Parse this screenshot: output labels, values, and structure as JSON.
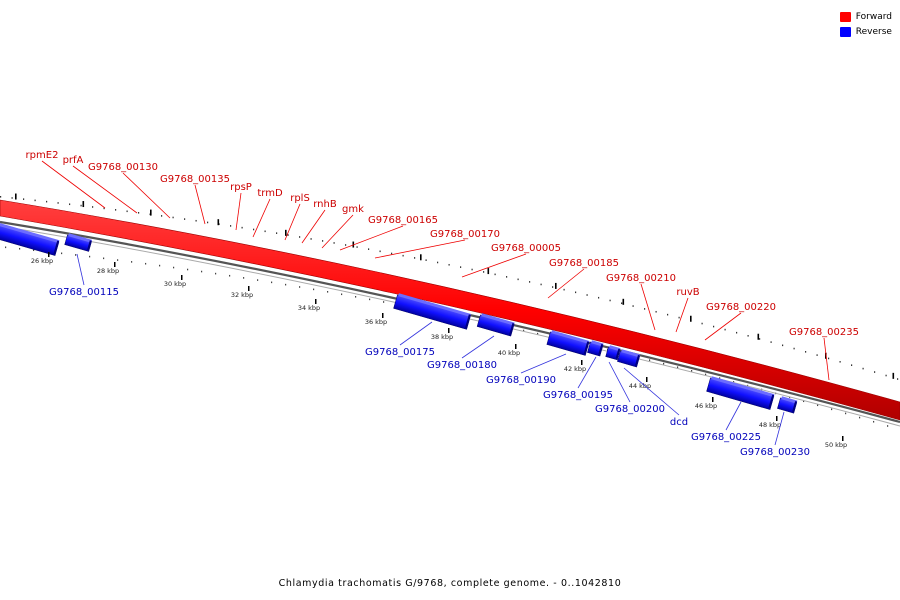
{
  "legend": {
    "items": [
      {
        "label": "Forward",
        "color": "#ff0000"
      },
      {
        "label": "Reverse",
        "color": "#0000ff"
      }
    ]
  },
  "caption": "Chlamydia trachomatis G/9768, complete genome. - 0..1042810",
  "colors": {
    "forward": "#e00000",
    "reverse": "#0000cc",
    "forward_label": "#cc0000",
    "reverse_label": "#0000bb",
    "backbone": "#777777"
  },
  "ticks": [
    "26 kbp",
    "28 kbp",
    "30 kbp",
    "32 kbp",
    "34 kbp",
    "36 kbp",
    "38 kbp",
    "40 kbp",
    "42 kbp",
    "44 kbp",
    "46 kbp",
    "48 kbp",
    "50 kbp"
  ],
  "forward_labels": [
    "rpmE2",
    "prfA",
    "G9768_00130",
    "G9768_00135",
    "rpsP",
    "trmD",
    "rplS",
    "rnhB",
    "gmk",
    "G9768_00165",
    "G9768_00170",
    "G9768_00005",
    "G9768_00185",
    "G9768_00210",
    "ruvB",
    "G9768_00220",
    "G9768_00235"
  ],
  "reverse_labels": [
    "G9768_00115",
    "G9768_00175",
    "G9768_00180",
    "G9768_00190",
    "G9768_00195",
    "G9768_00200",
    "dcd",
    "G9768_00225",
    "G9768_00230"
  ]
}
